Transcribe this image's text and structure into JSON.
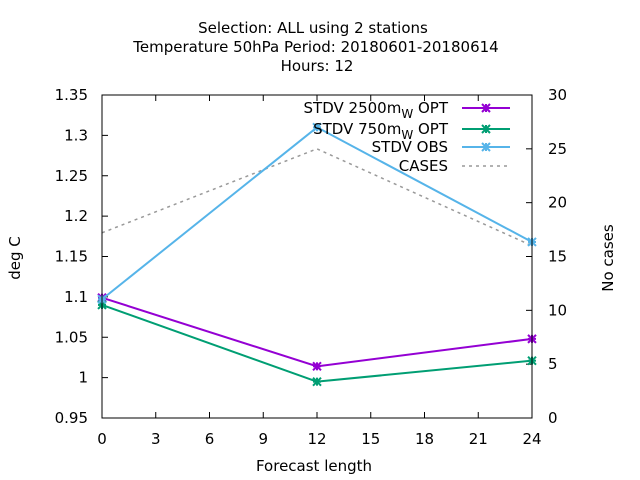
{
  "chart_data": {
    "type": "line",
    "title_lines": [
      "Selection: ALL using     2 stations",
      "Temperature 50hPa   Period: 20180601-20180614",
      "Hours:  12"
    ],
    "xlabel": "Forecast length",
    "ylabel": "deg C",
    "y2label": "No cases",
    "xlim": [
      0,
      24
    ],
    "ylim": [
      0.95,
      1.35
    ],
    "y2lim": [
      0,
      30
    ],
    "xticks": [
      "0",
      "3",
      "6",
      "9",
      "12",
      "15",
      "18",
      "21",
      "24"
    ],
    "yticks": [
      "0.95",
      "1",
      "1.05",
      "1.1",
      "1.15",
      "1.2",
      "1.25",
      "1.3",
      "1.35"
    ],
    "y2ticks": [
      "0",
      "5",
      "10",
      "15",
      "20",
      "25",
      "30"
    ],
    "grid": false,
    "legend_position": "top-right",
    "series": [
      {
        "name": "STDV 2500m",
        "name_sub": "W",
        "name_suffix": " OPT",
        "axis": "y",
        "color": "#9400d3",
        "marker": "x-star",
        "dashed": false,
        "x": [
          0,
          12,
          24
        ],
        "values": [
          1.099,
          1.014,
          1.048
        ]
      },
      {
        "name": "STDV 750m",
        "name_sub": "W",
        "name_suffix": " OPT",
        "axis": "y",
        "color": "#009e73",
        "marker": "x-star",
        "dashed": false,
        "x": [
          0,
          12,
          24
        ],
        "values": [
          1.09,
          0.995,
          1.021
        ]
      },
      {
        "name": "STDV OBS",
        "name_sub": "",
        "name_suffix": "",
        "axis": "y",
        "color": "#56b4e9",
        "marker": "x-star",
        "dashed": false,
        "x": [
          0,
          12,
          24
        ],
        "values": [
          1.097,
          1.31,
          1.168
        ]
      },
      {
        "name": "CASES",
        "name_sub": "",
        "name_suffix": "",
        "axis": "y2",
        "color": "#999999",
        "marker": "none",
        "dashed": true,
        "x": [
          0,
          12,
          24
        ],
        "values": [
          17.2,
          25,
          16
        ]
      }
    ]
  }
}
